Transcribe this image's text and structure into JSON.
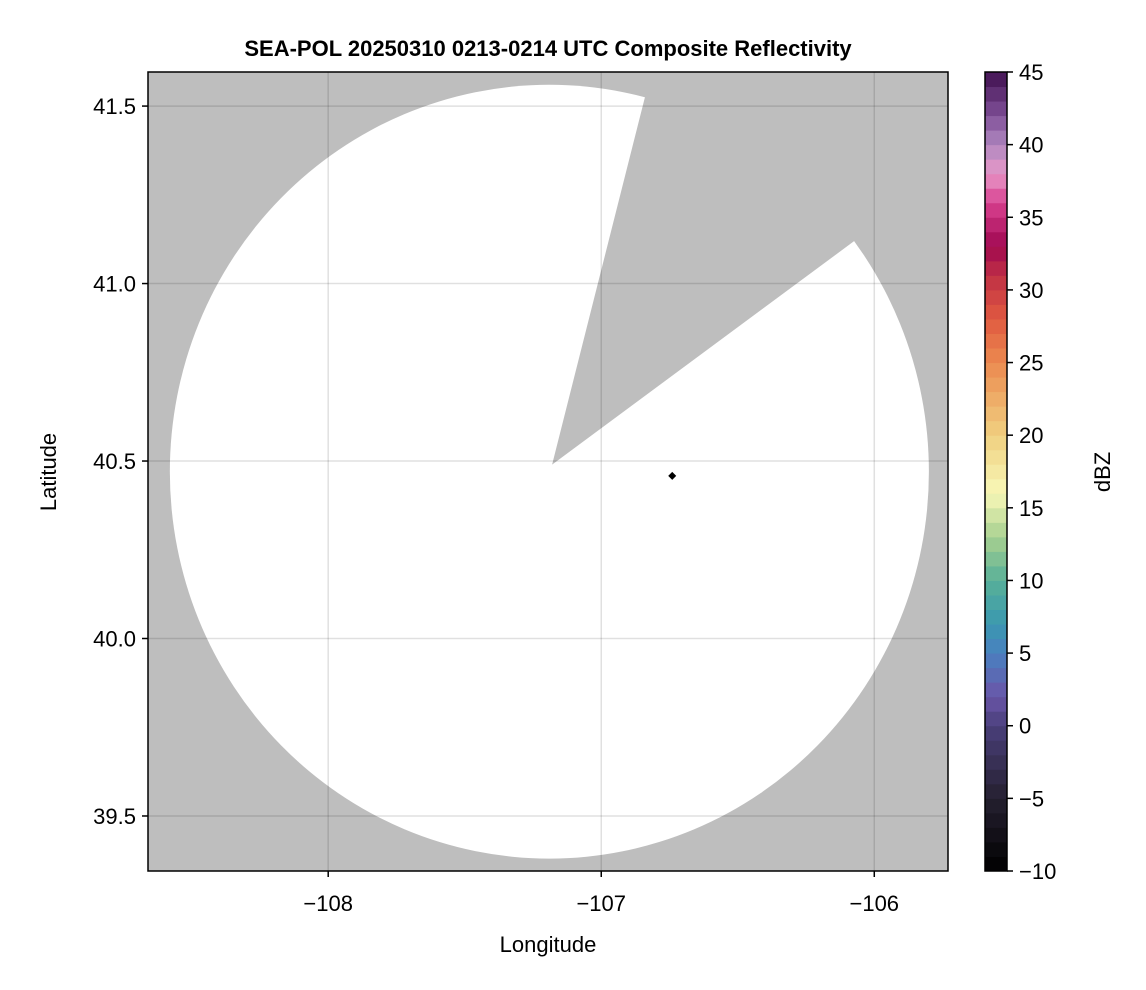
{
  "chart_data": {
    "type": "heatmap",
    "title": "SEA-POL 20250310 0213-0214 UTC Composite Reflectivity",
    "xlabel": "Longitude",
    "ylabel": "Latitude",
    "xlim": [
      -108.66,
      -105.73
    ],
    "ylim": [
      39.345,
      41.596
    ],
    "xticks": [
      -108,
      -107,
      -106
    ],
    "xtick_labels": [
      "−108",
      "−107",
      "−106"
    ],
    "yticks": [
      39.5,
      40.0,
      40.5,
      41.0,
      41.5
    ],
    "ytick_labels": [
      "39.5",
      "40.0",
      "40.5",
      "41.0",
      "41.5"
    ],
    "grid": true,
    "background_color": "#bebebe",
    "radar_coverage": {
      "center_lon": -107.19,
      "center_lat": 40.47,
      "radius_lon_deg": 1.39,
      "radius_lat_deg": 1.09,
      "fill": "#ffffff",
      "blocked_sector_vertices": [
        [
          -107.18,
          40.49
        ],
        [
          -106.84,
          41.525
        ],
        [
          -106.84,
          41.62
        ],
        [
          -105.7,
          41.62
        ],
        [
          -105.7,
          41.124
        ],
        [
          -106.066,
          41.124
        ]
      ]
    },
    "marker": {
      "lon": -106.74,
      "lat": 40.458,
      "shape": "diamond",
      "color": "#000000"
    },
    "colorbar": {
      "label": "dBZ",
      "range": [
        -10,
        45
      ],
      "step": 1,
      "ticks": [
        -10,
        -5,
        0,
        5,
        10,
        15,
        20,
        25,
        30,
        35,
        40,
        45
      ],
      "tick_labels": [
        "−10",
        "−5",
        "0",
        "5",
        "10",
        "15",
        "20",
        "25",
        "30",
        "35",
        "40",
        "45"
      ],
      "stops": [
        [
          -10,
          "#000000"
        ],
        [
          -5,
          "#252030"
        ],
        [
          0,
          "#4a3f7a"
        ],
        [
          2,
          "#6a55a8"
        ],
        [
          5,
          "#4a80c0"
        ],
        [
          7,
          "#3a98b0"
        ],
        [
          10,
          "#58b098"
        ],
        [
          13,
          "#a8d090"
        ],
        [
          16,
          "#f8f8b8"
        ],
        [
          20,
          "#f0d080"
        ],
        [
          25,
          "#ec8a50"
        ],
        [
          28,
          "#e05a40"
        ],
        [
          31,
          "#c03045"
        ],
        [
          33,
          "#a00850"
        ],
        [
          36,
          "#d84090"
        ],
        [
          38,
          "#e898c8"
        ],
        [
          40,
          "#b088c0"
        ],
        [
          42,
          "#805098"
        ],
        [
          45,
          "#401050"
        ]
      ]
    }
  }
}
